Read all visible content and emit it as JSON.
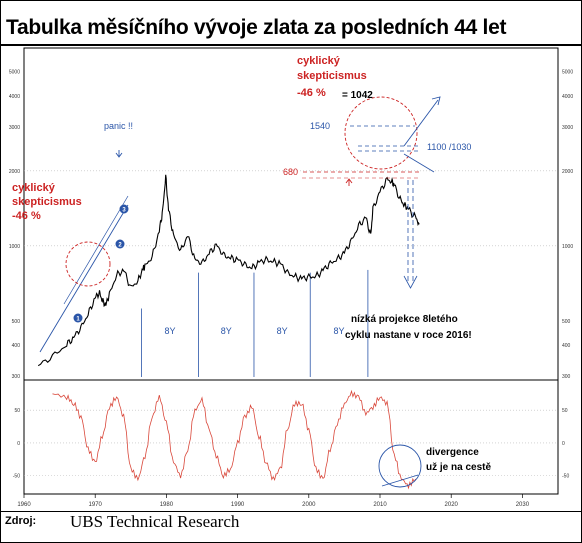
{
  "title": "Tabulka měsíčního vývoje zlata za posledních 44 let",
  "source_label": "Zdroj:",
  "source": "UBS Technical Research",
  "chart_data": [
    {
      "type": "line",
      "yscale": "log",
      "ylim": [
        300,
        6000
      ],
      "xlim": [
        1960,
        2035
      ],
      "x_ticks": [
        "1960",
        "1970",
        "1980",
        "1990",
        "2000",
        "2010",
        "2020",
        "2030"
      ],
      "y_ticks": [
        "5000",
        "4000",
        "3000",
        "2000",
        "1000",
        "500",
        "400",
        "300"
      ],
      "series_color": "#000000",
      "x": [
        1962,
        1964,
        1966,
        1967,
        1968,
        1969,
        1970,
        1970.6,
        1971,
        1971.5,
        1972,
        1973,
        1974,
        1975,
        1976,
        1976.7,
        1977,
        1978,
        1979,
        1979.5,
        1979.9,
        1980.3,
        1981,
        1982,
        1983,
        1984,
        1985,
        1986,
        1987,
        1988,
        1989,
        1990,
        1991,
        1992,
        1993,
        1994,
        1995,
        1996,
        1997,
        1998,
        1999,
        2000,
        2001,
        2002,
        2003,
        2004,
        2005,
        2006,
        2007,
        2008,
        2008.7,
        2009,
        2010,
        2011,
        2011.7,
        2012,
        2013,
        2013.5,
        2014,
        2015,
        2015.5
      ],
      "y": [
        330,
        360,
        400,
        430,
        470,
        530,
        620,
        650,
        600,
        580,
        640,
        760,
        800,
        680,
        720,
        810,
        830,
        900,
        1150,
        1400,
        1900,
        1400,
        1100,
        950,
        1100,
        880,
        850,
        930,
        1010,
        920,
        890,
        880,
        840,
        810,
        860,
        880,
        860,
        850,
        780,
        750,
        740,
        750,
        750,
        800,
        850,
        880,
        940,
        1050,
        1200,
        1300,
        1100,
        1400,
        1650,
        1850,
        1800,
        1750,
        1500,
        1450,
        1400,
        1300,
        1220
      ],
      "annotations": [
        {
          "text": "cyklický",
          "color": "#cc2222"
        },
        {
          "text": "skepticismus",
          "color": "#cc2222"
        },
        {
          "text": "-46 %",
          "color": "#cc2222"
        },
        {
          "text": "cyklický",
          "color": "#cc2222"
        },
        {
          "text": "skepticismus",
          "color": "#cc2222"
        },
        {
          "text": "-46 %",
          "color": "#cc2222"
        },
        {
          "text": "= 1042",
          "color": "#000000"
        },
        {
          "text": "panic !!",
          "color": "#2a55a8"
        },
        {
          "text": "1540",
          "color": "#2a55a8"
        },
        {
          "text": "1100 /1030",
          "color": "#2a55a8"
        },
        {
          "text": "680",
          "color": "#cc2222"
        },
        {
          "text": "nízká projekce 8letého",
          "color": "#000000"
        },
        {
          "text": "cyklu nastane v roce 2016!",
          "color": "#000000"
        }
      ],
      "cycle_labels": [
        "8Y",
        "8Y",
        "8Y",
        "8Y"
      ],
      "wave_labels": [
        "1",
        "2",
        "3"
      ]
    },
    {
      "type": "line",
      "ylim": [
        -75,
        90
      ],
      "y_ticks": [
        "50",
        "0",
        "-50"
      ],
      "series_color": "#d9473a",
      "x": [
        1964,
        1966,
        1967,
        1968,
        1969,
        1970,
        1971,
        1972,
        1973,
        1974,
        1975,
        1976,
        1977,
        1978,
        1979,
        1980,
        1981,
        1982,
        1983,
        1984,
        1985,
        1986,
        1987,
        1988,
        1989,
        1990,
        1991,
        1992,
        1993,
        1994,
        1995,
        1996,
        1997,
        1998,
        1999,
        2000,
        2001,
        2002,
        2003,
        2004,
        2005,
        2006,
        2007,
        2008,
        2009,
        2010,
        2011,
        2012,
        2013,
        2014,
        2015
      ],
      "y": [
        75,
        70,
        60,
        40,
        -10,
        -30,
        10,
        55,
        70,
        40,
        -40,
        -55,
        -20,
        40,
        70,
        30,
        -30,
        -50,
        -10,
        50,
        65,
        20,
        -20,
        -50,
        -40,
        0,
        40,
        55,
        10,
        -30,
        -55,
        -40,
        20,
        60,
        60,
        20,
        -40,
        -55,
        -10,
        30,
        60,
        75,
        70,
        45,
        55,
        70,
        60,
        -20,
        -55,
        -65,
        -55
      ],
      "annotations": [
        {
          "text": "divergence",
          "color": "#000000"
        },
        {
          "text": "už je na cestě",
          "color": "#000000"
        }
      ]
    }
  ]
}
